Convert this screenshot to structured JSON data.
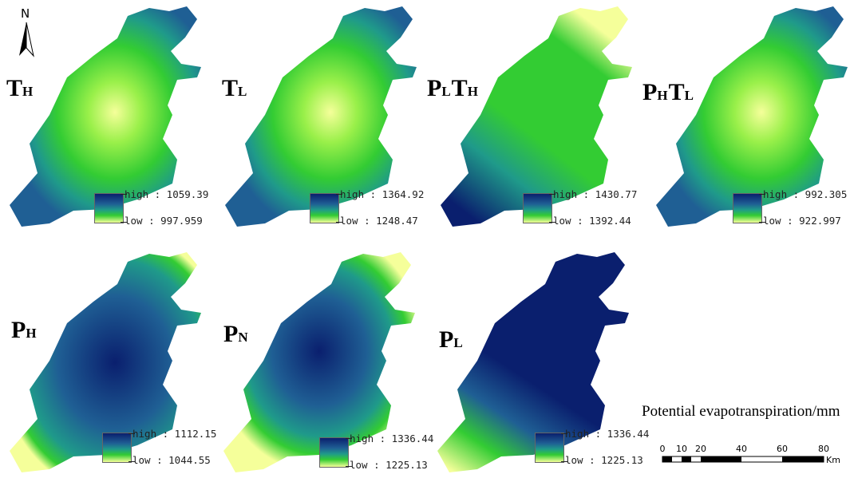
{
  "north_arrow": {
    "letter": "N",
    "icon": "north-arrow-icon"
  },
  "panels": [
    {
      "id": "TH",
      "label_parts": [
        {
          "t": "T",
          "sub": "H"
        }
      ],
      "high": "high : 1059.39",
      "low": "low : 997.959",
      "scheme": "center-bright"
    },
    {
      "id": "TL",
      "label_parts": [
        {
          "t": "T",
          "sub": "L"
        }
      ],
      "high": "high : 1364.92",
      "low": "low : 1248.47",
      "scheme": "center-bright"
    },
    {
      "id": "PLTH",
      "label_parts": [
        {
          "t": "P",
          "sub": "L"
        },
        {
          "t": "T",
          "sub": "H"
        }
      ],
      "high": "high : 1430.77",
      "low": "low : 1392.44",
      "scheme": "green-mostly"
    },
    {
      "id": "PHTL",
      "label_parts": [
        {
          "t": "P",
          "sub": "H"
        },
        {
          "t": "T",
          "sub": "L"
        }
      ],
      "high": "high : 992.305",
      "low": "low : 922.997",
      "scheme": "center-bright"
    },
    {
      "id": "PH",
      "label_parts": [
        {
          "t": "P",
          "sub": "H"
        }
      ],
      "high": "high : 1112.15",
      "low": "low : 1044.55",
      "scheme": "center-dark"
    },
    {
      "id": "PN",
      "label_parts": [
        {
          "t": "P",
          "sub": "N"
        }
      ],
      "high": "high : 1336.44",
      "low": "low : 1225.13",
      "scheme": "center-dark-green-south"
    },
    {
      "id": "PL",
      "label_parts": [
        {
          "t": "P",
          "sub": "L"
        }
      ],
      "high": "high : 1336.44",
      "low": "low : 1225.13",
      "scheme": "mostly-dark"
    }
  ],
  "colors": {
    "high": "#0a1f6e",
    "mid_blue": "#1f5f94",
    "teal": "#1f9a8a",
    "green": "#33cc33",
    "light_green": "#9af04a",
    "low": "#f5ff9a"
  },
  "title": "Potential evapotranspiration/mm",
  "scalebar": {
    "ticks": [
      "0",
      "10",
      "20",
      "40",
      "60",
      "80"
    ],
    "unit": "Km"
  }
}
